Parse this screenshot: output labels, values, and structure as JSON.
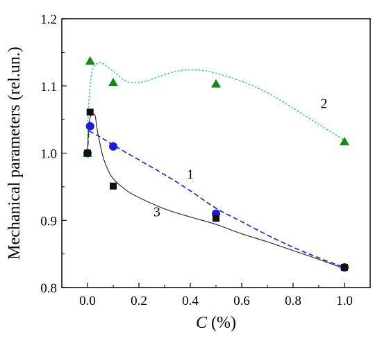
{
  "chart_data": {
    "type": "scatter",
    "xlabel": {
      "var": "C",
      "unit": " (%)"
    },
    "ylabel": "Mechanical parameters (rel.un.)",
    "xlim": [
      -0.1,
      1.1
    ],
    "ylim": [
      0.8,
      1.2
    ],
    "x_ticks": [
      0.0,
      0.2,
      0.4,
      0.6,
      0.8,
      1.0
    ],
    "x_tick_labels": [
      "0.0",
      "0.2",
      "0.4",
      "0.6",
      "0.8",
      "1.0"
    ],
    "y_ticks": [
      0.8,
      0.9,
      1.0,
      1.1,
      1.2
    ],
    "y_tick_labels": [
      "0.8",
      "0.9",
      "1.0",
      "1.1",
      "1.2"
    ],
    "grid": false,
    "legend": "none",
    "series": [
      {
        "marker": "circle",
        "color": "#1a1adf",
        "line_style": "dashed",
        "curve_label": "1",
        "x": [
          0.0,
          0.01,
          0.1,
          0.5,
          1.0
        ],
        "y": [
          1.0,
          1.04,
          1.01,
          0.91,
          0.83
        ],
        "fit": [
          [
            0.0,
            1.0
          ],
          [
            0.005,
            1.03
          ],
          [
            0.01,
            1.032
          ],
          [
            0.05,
            1.024
          ],
          [
            0.1,
            1.012
          ],
          [
            0.2,
            0.99
          ],
          [
            0.3,
            0.968
          ],
          [
            0.4,
            0.944
          ],
          [
            0.5,
            0.918
          ],
          [
            0.6,
            0.898
          ],
          [
            0.7,
            0.878
          ],
          [
            0.8,
            0.86
          ],
          [
            0.9,
            0.844
          ],
          [
            1.0,
            0.83
          ]
        ]
      },
      {
        "marker": "triangle",
        "color": "#138a13",
        "line_style": "dotted",
        "curve_label": "2",
        "x": [
          0.0,
          0.01,
          0.1,
          0.5,
          1.0
        ],
        "y": [
          1.0,
          1.137,
          1.105,
          1.103,
          1.017
        ],
        "fit": [
          [
            0.0,
            1.0
          ],
          [
            0.003,
            1.06
          ],
          [
            0.01,
            1.1
          ],
          [
            0.02,
            1.125
          ],
          [
            0.04,
            1.134
          ],
          [
            0.06,
            1.133
          ],
          [
            0.1,
            1.122
          ],
          [
            0.15,
            1.107
          ],
          [
            0.2,
            1.105
          ],
          [
            0.25,
            1.11
          ],
          [
            0.3,
            1.117
          ],
          [
            0.35,
            1.122
          ],
          [
            0.4,
            1.124
          ],
          [
            0.45,
            1.123
          ],
          [
            0.5,
            1.119
          ],
          [
            0.6,
            1.107
          ],
          [
            0.7,
            1.09
          ],
          [
            0.8,
            1.067
          ],
          [
            0.9,
            1.043
          ],
          [
            1.0,
            1.019
          ]
        ]
      },
      {
        "marker": "square",
        "color": "#111111",
        "line_style": "solid",
        "curve_label": "3",
        "x": [
          0.0,
          0.01,
          0.1,
          0.5,
          1.0
        ],
        "y": [
          1.0,
          1.061,
          0.951,
          0.903,
          0.83
        ],
        "fit": [
          [
            0.0,
            1.0
          ],
          [
            0.005,
            1.04
          ],
          [
            0.012,
            1.055
          ],
          [
            0.022,
            1.058
          ],
          [
            0.03,
            1.055
          ],
          [
            0.04,
            1.03
          ],
          [
            0.06,
            0.995
          ],
          [
            0.08,
            0.975
          ],
          [
            0.1,
            0.962
          ],
          [
            0.15,
            0.945
          ],
          [
            0.2,
            0.934
          ],
          [
            0.3,
            0.917
          ],
          [
            0.4,
            0.905
          ],
          [
            0.5,
            0.894
          ],
          [
            0.6,
            0.88
          ],
          [
            0.7,
            0.868
          ],
          [
            0.8,
            0.855
          ],
          [
            0.9,
            0.842
          ],
          [
            1.0,
            0.828
          ]
        ]
      }
    ],
    "annotations": [
      {
        "text": "1",
        "x": 0.4,
        "y": 0.962
      },
      {
        "text": "2",
        "x": 0.92,
        "y": 1.067
      },
      {
        "text": "3",
        "x": 0.27,
        "y": 0.906
      }
    ]
  }
}
